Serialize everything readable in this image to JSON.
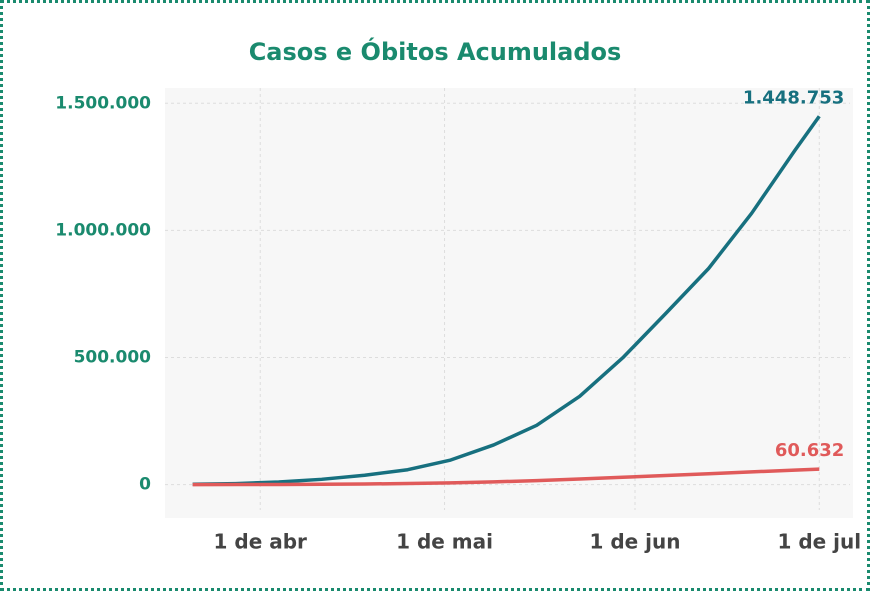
{
  "chart_data": {
    "type": "line",
    "title": "Casos e Óbitos Acumulados",
    "x": [
      81,
      88,
      95,
      102,
      109,
      116,
      123,
      130,
      137,
      144,
      151,
      158,
      165,
      172,
      179,
      183
    ],
    "xlim": [
      76.5,
      188
    ],
    "xticks": [
      {
        "value": 92,
        "label": "1 de abr"
      },
      {
        "value": 122,
        "label": "1 de mai"
      },
      {
        "value": 153,
        "label": "1 de jun"
      },
      {
        "value": 183,
        "label": "1 de jul"
      }
    ],
    "ylim": [
      -100000,
      1560000
    ],
    "yticks": [
      0,
      {
        "value": 500000,
        "label": "500.000"
      },
      {
        "value": 1000000,
        "label": "1.000.000"
      },
      {
        "value": 1500000,
        "label": "1.500.000"
      }
    ],
    "grid": true,
    "series": [
      {
        "name": "Casos",
        "color": "#17707f",
        "values": [
          1128,
          3904,
          10278,
          20727,
          36599,
          58509,
          96559,
          155939,
          233142,
          347398,
          498440,
          672846,
          850514,
          1067579,
          1313667,
          1448753
        ],
        "value_labels": [
          null,
          null,
          null,
          null,
          null,
          null,
          null,
          null,
          null,
          null,
          null,
          null,
          null,
          null,
          null,
          "1.448.753"
        ]
      },
      {
        "name": "Óbitos",
        "color": "#e05a5a",
        "values": [
          18,
          114,
          432,
          1124,
          2347,
          4016,
          6750,
          10627,
          15633,
          22013,
          28834,
          35930,
          42720,
          49976,
          57070,
          60632
        ],
        "value_labels": [
          null,
          null,
          null,
          null,
          null,
          null,
          null,
          null,
          null,
          null,
          null,
          null,
          null,
          null,
          null,
          "60.632"
        ]
      }
    ]
  }
}
